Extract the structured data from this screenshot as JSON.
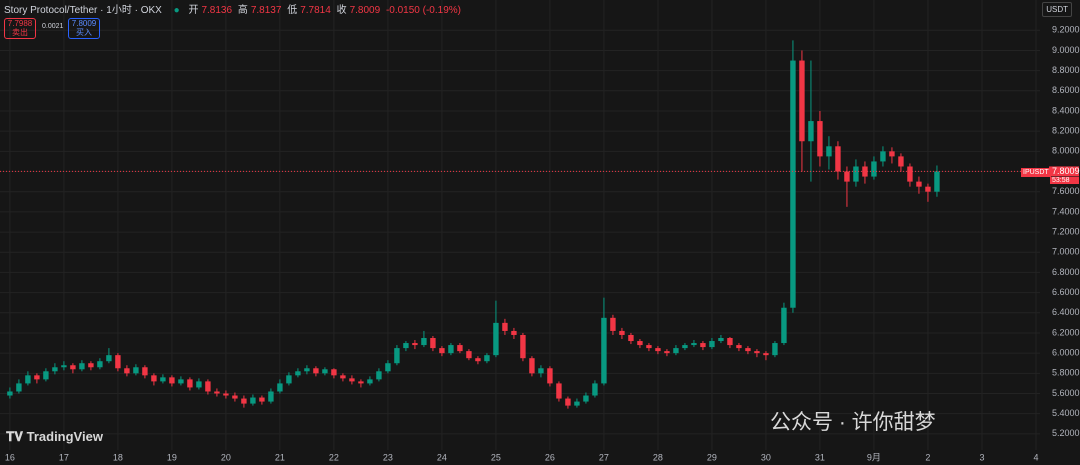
{
  "header": {
    "symbol": "Story Protocol/Tether · 1小时 · OKX",
    "open_label": "开",
    "open": "7.8136",
    "high_label": "高",
    "high": "7.8137",
    "low_label": "低",
    "low": "7.7814",
    "close_label": "收",
    "close": "7.8009",
    "change": "-0.0150 (-0.19%)",
    "sell_price": "7.7988",
    "sell_label": "卖出",
    "spread": "0.0021",
    "buy_price": "7.8009",
    "buy_label": "买入",
    "currency": "USDT",
    "price_tag_symbol": "IPUSDT",
    "countdown": "53:58",
    "logo": "TradingView",
    "watermark": "公众号 · 许你甜梦"
  },
  "chart_data": {
    "type": "candlestick",
    "grid": true,
    "xlim": [
      -4.4,
      457.8
    ],
    "ylim": [
      5.04,
      9.5
    ],
    "xticks": [
      {
        "value": 0,
        "label": "16"
      },
      {
        "value": 24,
        "label": "17"
      },
      {
        "value": 48,
        "label": "18"
      },
      {
        "value": 72,
        "label": "19"
      },
      {
        "value": 96,
        "label": "20"
      },
      {
        "value": 120,
        "label": "21"
      },
      {
        "value": 144,
        "label": "22"
      },
      {
        "value": 168,
        "label": "23"
      },
      {
        "value": 192,
        "label": "24"
      },
      {
        "value": 216,
        "label": "25"
      },
      {
        "value": 240,
        "label": "26"
      },
      {
        "value": 264,
        "label": "27"
      },
      {
        "value": 288,
        "label": "28"
      },
      {
        "value": 312,
        "label": "29"
      },
      {
        "value": 336,
        "label": "30"
      },
      {
        "value": 360,
        "label": "31"
      },
      {
        "value": 384,
        "label": "9月"
      },
      {
        "value": 408,
        "label": "2"
      },
      {
        "value": 432,
        "label": "3"
      },
      {
        "value": 456,
        "label": "4"
      }
    ],
    "yticks": [
      {
        "value": 5.2,
        "label": "5.2000"
      },
      {
        "value": 5.4,
        "label": "5.4000"
      },
      {
        "value": 5.6,
        "label": "5.6000"
      },
      {
        "value": 5.8,
        "label": "5.8000"
      },
      {
        "value": 6.0,
        "label": "6.0000"
      },
      {
        "value": 6.2,
        "label": "6.2000"
      },
      {
        "value": 6.4,
        "label": "6.4000"
      },
      {
        "value": 6.6,
        "label": "6.6000"
      },
      {
        "value": 6.8,
        "label": "6.8000"
      },
      {
        "value": 7.0,
        "label": "7.0000"
      },
      {
        "value": 7.2,
        "label": "7.2000"
      },
      {
        "value": 7.4,
        "label": "7.4000"
      },
      {
        "value": 7.6,
        "label": "7.6000"
      },
      {
        "value": 7.8,
        "label": "7.8000"
      },
      {
        "value": 8.0,
        "label": "8.0000"
      },
      {
        "value": 8.2,
        "label": "8.2000"
      },
      {
        "value": 8.4,
        "label": "8.4000"
      },
      {
        "value": 8.6,
        "label": "8.6000"
      },
      {
        "value": 8.8,
        "label": "8.8000"
      },
      {
        "value": 9.0,
        "label": "9.0000"
      },
      {
        "value": 9.2,
        "label": "9.2000"
      }
    ],
    "up_color": "#089981",
    "down_color": "#f23645",
    "series": [
      {
        "name": "IPUSDT",
        "x": [
          0,
          4,
          8,
          12,
          16,
          20,
          24,
          28,
          32,
          36,
          40,
          44,
          48,
          52,
          56,
          60,
          64,
          68,
          72,
          76,
          80,
          84,
          88,
          92,
          96,
          100,
          104,
          108,
          112,
          116,
          120,
          124,
          128,
          132,
          136,
          140,
          144,
          148,
          152,
          156,
          160,
          164,
          168,
          172,
          176,
          180,
          184,
          188,
          192,
          196,
          200,
          204,
          208,
          212,
          216,
          220,
          224,
          228,
          232,
          236,
          240,
          244,
          248,
          252,
          256,
          260,
          264,
          268,
          272,
          276,
          280,
          284,
          288,
          292,
          296,
          300,
          304,
          308,
          312,
          316,
          320,
          324,
          328,
          332,
          336,
          340,
          344,
          348,
          352,
          356,
          360,
          364,
          368,
          372,
          376,
          380,
          384,
          388,
          392,
          396,
          400,
          404,
          408,
          412
        ],
        "open": [
          5.58,
          5.62,
          5.7,
          5.78,
          5.74,
          5.82,
          5.86,
          5.88,
          5.84,
          5.9,
          5.86,
          5.92,
          5.98,
          5.85,
          5.8,
          5.86,
          5.78,
          5.72,
          5.76,
          5.7,
          5.74,
          5.66,
          5.72,
          5.62,
          5.6,
          5.58,
          5.55,
          5.5,
          5.56,
          5.52,
          5.62,
          5.7,
          5.78,
          5.82,
          5.85,
          5.8,
          5.84,
          5.78,
          5.75,
          5.72,
          5.7,
          5.74,
          5.82,
          5.9,
          6.05,
          6.1,
          6.08,
          6.15,
          6.05,
          6.0,
          6.08,
          6.02,
          5.95,
          5.92,
          5.98,
          6.3,
          6.22,
          6.18,
          5.95,
          5.8,
          5.85,
          5.7,
          5.55,
          5.48,
          5.52,
          5.58,
          5.7,
          6.35,
          6.22,
          6.18,
          6.12,
          6.08,
          6.05,
          6.02,
          6.0,
          6.05,
          6.08,
          6.1,
          6.06,
          6.12,
          6.15,
          6.08,
          6.05,
          6.02,
          6.0,
          5.98,
          6.1,
          6.45,
          8.9,
          8.1,
          8.3,
          7.95,
          8.05,
          7.8,
          7.7,
          7.85,
          7.75,
          7.9,
          8.0,
          7.95,
          7.85,
          7.7,
          7.65,
          7.6
        ],
        "high": [
          5.66,
          5.74,
          5.82,
          5.8,
          5.85,
          5.9,
          5.92,
          5.9,
          5.93,
          5.92,
          5.95,
          6.05,
          6.0,
          5.88,
          5.89,
          5.88,
          5.8,
          5.79,
          5.78,
          5.77,
          5.76,
          5.75,
          5.74,
          5.65,
          5.63,
          5.61,
          5.58,
          5.59,
          5.58,
          5.65,
          5.74,
          5.81,
          5.85,
          5.88,
          5.87,
          5.86,
          5.85,
          5.8,
          5.78,
          5.74,
          5.77,
          5.85,
          5.93,
          6.08,
          6.12,
          6.13,
          6.22,
          6.17,
          6.07,
          6.1,
          6.1,
          6.04,
          5.97,
          6.0,
          6.52,
          6.34,
          6.25,
          6.2,
          5.97,
          5.88,
          5.87,
          5.72,
          5.57,
          5.55,
          5.61,
          5.73,
          6.55,
          6.38,
          6.25,
          6.2,
          6.14,
          6.1,
          6.07,
          6.04,
          6.08,
          6.1,
          6.13,
          6.12,
          6.15,
          6.18,
          6.16,
          6.1,
          6.07,
          6.04,
          6.02,
          6.12,
          6.5,
          9.1,
          9.0,
          8.9,
          8.4,
          8.15,
          8.1,
          7.85,
          7.92,
          7.9,
          7.95,
          8.05,
          8.04,
          7.98,
          7.88,
          7.75,
          7.68,
          7.86
        ],
        "low": [
          5.55,
          5.6,
          5.68,
          5.7,
          5.72,
          5.79,
          5.83,
          5.8,
          5.82,
          5.83,
          5.84,
          5.9,
          5.82,
          5.77,
          5.78,
          5.75,
          5.68,
          5.7,
          5.67,
          5.68,
          5.63,
          5.64,
          5.59,
          5.57,
          5.55,
          5.52,
          5.46,
          5.48,
          5.49,
          5.5,
          5.6,
          5.68,
          5.76,
          5.79,
          5.77,
          5.78,
          5.75,
          5.72,
          5.69,
          5.66,
          5.68,
          5.72,
          5.8,
          5.88,
          6.02,
          6.04,
          6.06,
          6.02,
          5.97,
          5.98,
          6.0,
          5.93,
          5.89,
          5.9,
          5.96,
          6.18,
          6.14,
          5.92,
          5.77,
          5.76,
          5.67,
          5.52,
          5.45,
          5.46,
          5.5,
          5.56,
          5.68,
          6.18,
          6.14,
          6.09,
          6.05,
          6.02,
          5.99,
          5.97,
          5.98,
          6.03,
          6.06,
          6.03,
          6.04,
          6.1,
          6.05,
          6.02,
          5.99,
          5.96,
          5.93,
          5.96,
          6.08,
          6.4,
          7.8,
          7.7,
          7.85,
          7.82,
          7.72,
          7.45,
          7.65,
          7.68,
          7.72,
          7.85,
          7.88,
          7.8,
          7.65,
          7.58,
          7.5,
          7.55
        ],
        "close": [
          5.62,
          5.7,
          5.78,
          5.74,
          5.82,
          5.86,
          5.88,
          5.84,
          5.9,
          5.86,
          5.92,
          5.98,
          5.85,
          5.8,
          5.86,
          5.78,
          5.72,
          5.76,
          5.7,
          5.74,
          5.66,
          5.72,
          5.62,
          5.6,
          5.58,
          5.55,
          5.5,
          5.56,
          5.52,
          5.62,
          5.7,
          5.78,
          5.82,
          5.85,
          5.8,
          5.84,
          5.78,
          5.75,
          5.72,
          5.7,
          5.74,
          5.82,
          5.9,
          6.05,
          6.1,
          6.08,
          6.15,
          6.05,
          6.0,
          6.08,
          6.02,
          5.95,
          5.92,
          5.98,
          6.3,
          6.22,
          6.18,
          5.95,
          5.8,
          5.85,
          5.7,
          5.55,
          5.48,
          5.52,
          5.58,
          5.7,
          6.35,
          6.22,
          6.18,
          6.12,
          6.08,
          6.05,
          6.02,
          6.0,
          6.05,
          6.08,
          6.1,
          6.06,
          6.12,
          6.15,
          6.08,
          6.05,
          6.02,
          6.0,
          5.98,
          6.1,
          6.45,
          8.9,
          8.1,
          8.3,
          7.95,
          8.05,
          7.8,
          7.7,
          7.85,
          7.75,
          7.9,
          8.0,
          7.95,
          7.85,
          7.7,
          7.65,
          7.6,
          7.8009
        ]
      }
    ]
  }
}
